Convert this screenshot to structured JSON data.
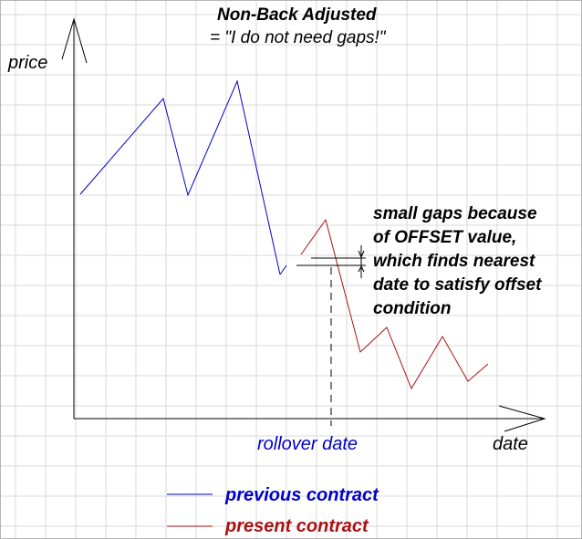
{
  "diagram": {
    "title": "Non-Back Adjusted",
    "subtitle": "= \"I do not need gaps!\"",
    "y_axis_label": "price",
    "x_axis_label": "date",
    "rollover_label": "rollover date",
    "annotation_lines": [
      "small gaps because",
      "of OFFSET value,",
      "which finds nearest",
      "date to satisfy offset",
      "condition"
    ],
    "legend": [
      {
        "label": "previous contract",
        "color": "#0000cc"
      },
      {
        "label": "present contract",
        "color": "#aa1111"
      }
    ],
    "colors": {
      "grid": "#d9d9d9",
      "axis": "#000000",
      "previous_contract": "#0000cc",
      "present_contract": "#aa1111",
      "rollover_label": "#0000cc",
      "present_legend_label": "#aa1111"
    },
    "grid": true
  }
}
